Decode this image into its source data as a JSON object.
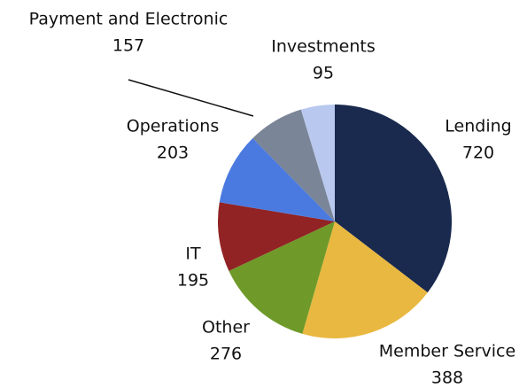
{
  "chart_data": {
    "type": "pie",
    "categories": [
      "Lending",
      "Member Service",
      "Other",
      "IT",
      "Operations",
      "Payment and Electronic",
      "Investments"
    ],
    "values": [
      720,
      388,
      276,
      195,
      203,
      157,
      95
    ],
    "colors": [
      "#1a2a4f",
      "#e9b840",
      "#6f9a2a",
      "#912324",
      "#4a7ae0",
      "#7a8597",
      "#b8c8ee"
    ]
  }
}
